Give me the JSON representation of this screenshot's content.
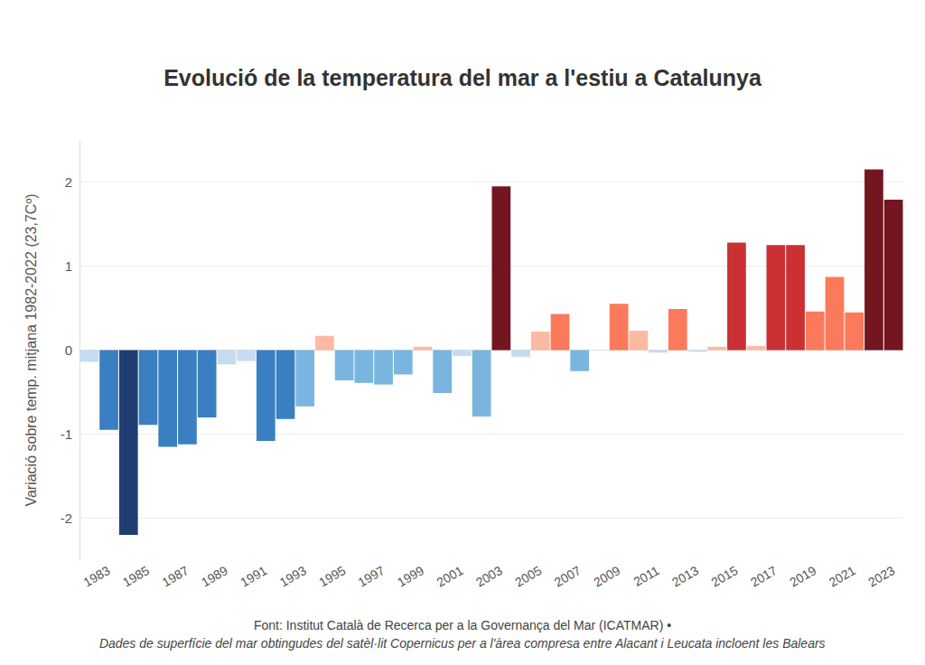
{
  "chart_data": {
    "type": "bar",
    "title": "Evolució de la temperatura del mar a l'estiu a Catalunya",
    "y_label": "Variació sobre temp. mitjana 1982-2022 (23,7Cº)",
    "source": "Font: Institut Català de Recerca per a la Governança del Mar (ICATMAR) •",
    "note": "Dades de superfície del mar obtingudes del satèl·lit Copernicus per a l'àrea compresa entre Alacant i Leucata incloent les Balears",
    "x": [
      1982,
      1983,
      1984,
      1985,
      1986,
      1987,
      1988,
      1989,
      1990,
      1991,
      1992,
      1993,
      1994,
      1995,
      1996,
      1997,
      1998,
      1999,
      2000,
      2001,
      2002,
      2003,
      2004,
      2005,
      2006,
      2007,
      2008,
      2009,
      2010,
      2011,
      2012,
      2013,
      2014,
      2015,
      2016,
      2017,
      2018,
      2019,
      2020,
      2021,
      2022,
      2023
    ],
    "values": [
      -0.14,
      -0.95,
      -2.2,
      -0.89,
      -1.15,
      -1.12,
      -0.8,
      -0.17,
      -0.13,
      -1.08,
      -0.82,
      -0.67,
      0.17,
      -0.36,
      -0.39,
      -0.41,
      -0.29,
      0.04,
      -0.51,
      -0.07,
      -0.79,
      1.95,
      -0.08,
      0.22,
      0.43,
      -0.25,
      0.0,
      0.55,
      0.23,
      -0.03,
      0.49,
      -0.02,
      0.04,
      1.28,
      0.05,
      1.25,
      1.25,
      0.46,
      0.87,
      0.45,
      2.15,
      1.79
    ],
    "colors": [
      "#c6dbef",
      "#3a7fc1",
      "#1f3f73",
      "#3a7fc1",
      "#3a7fc1",
      "#3a7fc1",
      "#3a7fc1",
      "#c6dbef",
      "#c6dbef",
      "#3a7fc1",
      "#3a7fc1",
      "#79b5df",
      "#fcbba1",
      "#79b5df",
      "#79b5df",
      "#79b5df",
      "#79b5df",
      "#fcbba1",
      "#79b5df",
      "#c6dbef",
      "#79b5df",
      "#731622",
      "#c6dbef",
      "#fcbba1",
      "#fb7a5b",
      "#79b5df",
      "#fcbba1",
      "#fb7a5b",
      "#fcbba1",
      "#c6dbef",
      "#fb7a5b",
      "#c6dbef",
      "#fcbba1",
      "#cb3033",
      "#fcbba1",
      "#cb3033",
      "#cb3033",
      "#fb7a5b",
      "#fb7a5b",
      "#fb7a5b",
      "#731622",
      "#731622"
    ],
    "xlim": [
      1981.5,
      2023.5
    ],
    "xticks": [
      1983,
      1985,
      1987,
      1989,
      1991,
      1993,
      1995,
      1997,
      1999,
      2001,
      2003,
      2005,
      2007,
      2009,
      2011,
      2013,
      2015,
      2017,
      2019,
      2021,
      2023
    ],
    "ylim": [
      -2.5,
      2.5
    ],
    "yticks": [
      -2,
      -1,
      0,
      1,
      2
    ],
    "grid": true
  }
}
